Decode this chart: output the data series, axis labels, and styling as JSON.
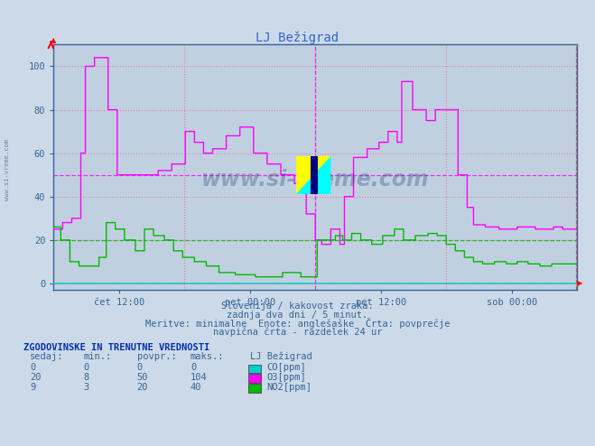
{
  "title": "LJ Bežigrad",
  "bg_color": "#ccd9e8",
  "plot_bg_color": "#c0d0e0",
  "xlabel_ticks_pos": [
    72,
    216,
    360,
    504
  ],
  "xlabel_ticks_labels": [
    "čet 12:00",
    "pet 00:00",
    "pet 12:00",
    "sob 00:00"
  ],
  "yticks": [
    0,
    20,
    40,
    60,
    80,
    100
  ],
  "ylim": [
    -3,
    110
  ],
  "xlim": [
    0,
    576
  ],
  "vgrid_pos": [
    0,
    144,
    288,
    432,
    576
  ],
  "vline_24h": 288,
  "avg_o3": 50,
  "avg_no2": 20,
  "o3_color": "#ff00ff",
  "no2_color": "#00bb00",
  "co_color": "#00cccc",
  "subtitle_lines": [
    "Slovenija / kakovost zraka.",
    "zadnja dva dni / 5 minut.",
    "Meritve: minimalne  Enote: anglešaške  Črta: povprečje",
    "navpična črta - razdelek 24 ur"
  ],
  "table_header": "ZGODOVINSKE IN TRENUTNE VREDNOSTI",
  "table_cols": [
    "sedaj:",
    "min.:",
    "povpr.:",
    "maks.:",
    "LJ Bežigrad"
  ],
  "table_data": [
    [
      0,
      0,
      0,
      0,
      "CO[ppm]"
    ],
    [
      20,
      8,
      50,
      104,
      "O3[ppm]"
    ],
    [
      9,
      3,
      20,
      40,
      "NO2[ppm]"
    ]
  ],
  "legend_colors": [
    "#00cccc",
    "#ff00ff",
    "#00bb00"
  ],
  "watermark": "www.si-vreme.com"
}
